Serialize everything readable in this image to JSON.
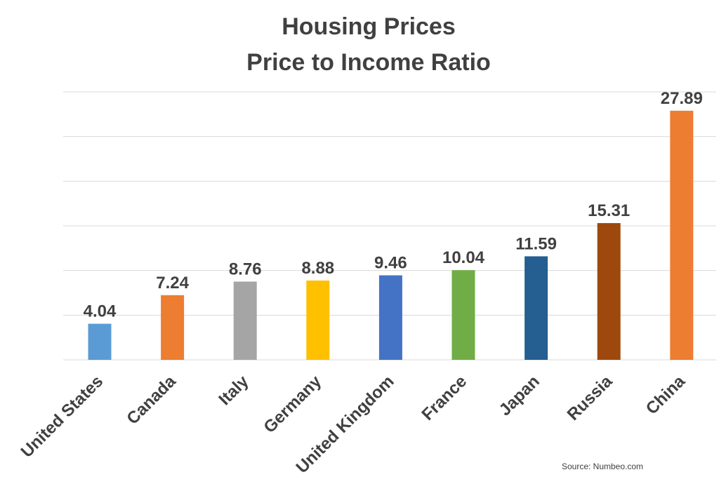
{
  "chart_data": {
    "type": "bar",
    "title": [
      "Housing Prices",
      "Price to Income Ratio"
    ],
    "categories": [
      "United States",
      "Canada",
      "Italy",
      "Germany",
      "United Kingdom",
      "France",
      "Japan",
      "Russia",
      "China"
    ],
    "values": [
      4.04,
      7.24,
      8.76,
      8.88,
      9.46,
      10.04,
      11.59,
      15.31,
      27.89
    ],
    "data_labels": [
      "4.04",
      "7.24",
      "8.76",
      "8.88",
      "9.46",
      "10.04",
      "11.59",
      "15.31",
      "27.89"
    ],
    "colors": [
      "#5b9bd5",
      "#ed7d31",
      "#a5a5a5",
      "#ffc000",
      "#4472c4",
      "#70ad47",
      "#255e91",
      "#9e480e",
      "#ed7d31"
    ],
    "ylim": [
      0,
      30
    ],
    "grid": true,
    "legend": "none",
    "source": "Source: Numbeo.com"
  }
}
